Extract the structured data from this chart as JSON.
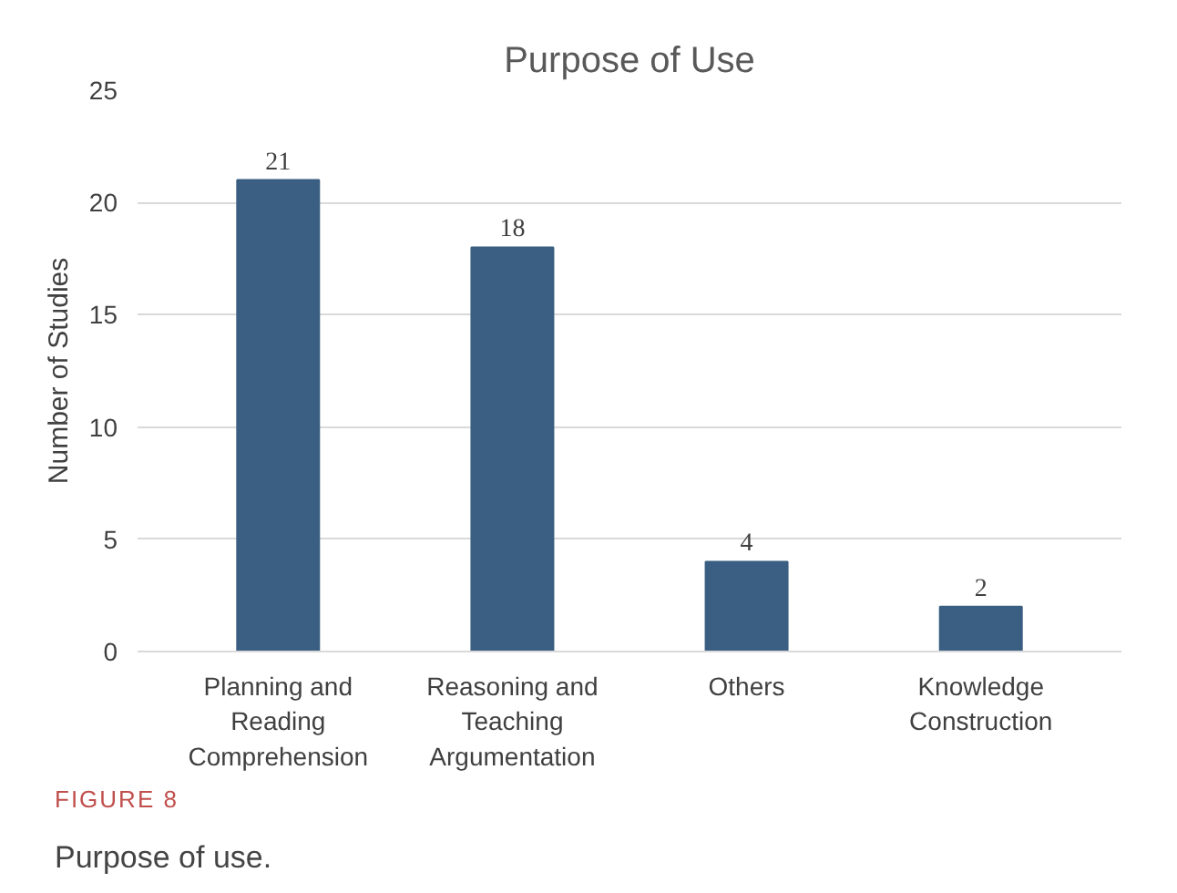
{
  "chart_data": {
    "type": "bar",
    "title": "Purpose of Use",
    "ylabel": "Number of Studies",
    "categories": [
      "Planning and\nReading\nComprehension",
      "Reasoning and\nTeaching\nArgumentation",
      "Others",
      "Knowledge\nConstruction"
    ],
    "values": [
      21,
      18,
      4,
      2
    ],
    "color": "#3a5f82",
    "ylim": [
      0,
      25
    ],
    "yticks": [
      0,
      5,
      10,
      15,
      20,
      25
    ],
    "grid": "y",
    "data_labels": true,
    "annotations": [
      "FIGURE 8",
      "Purpose of use."
    ]
  }
}
